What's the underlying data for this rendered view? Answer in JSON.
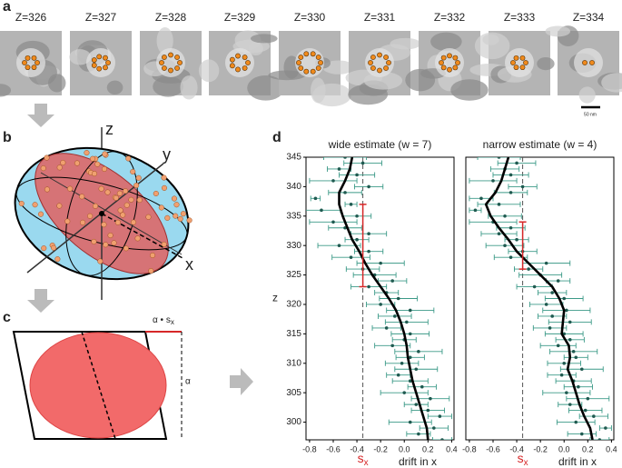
{
  "panel_labels": [
    "a",
    "b",
    "c",
    "d"
  ],
  "panel_a": {
    "slices": [
      "Z=326",
      "Z=327",
      "Z=328",
      "Z=329",
      "Z=330",
      "Z=331",
      "Z=332",
      "Z=333",
      "Z=334"
    ],
    "scale_bar": "50 nm"
  },
  "panel_b": {
    "axis_labels": [
      "z",
      "y",
      "x"
    ]
  },
  "panel_c": {
    "top_label": "α • s",
    "top_label_sub": "x",
    "side_label": "α"
  },
  "chart_data": [
    {
      "type": "scatter",
      "title": "wide estimate (w = 7)",
      "xlabel": "drift in x",
      "ylabel": "z",
      "y": [
        297,
        298,
        299,
        300,
        301,
        302,
        303,
        304,
        305,
        306,
        307,
        308,
        309,
        310,
        311,
        312,
        313,
        314,
        315,
        316,
        317,
        318,
        319,
        320,
        321,
        322,
        323,
        324,
        325,
        326,
        327,
        328,
        329,
        330,
        331,
        332,
        333,
        334,
        335,
        336,
        337,
        338,
        339,
        340,
        341,
        342,
        343,
        344,
        345
      ],
      "x": [
        0.32,
        0.12,
        0.25,
        0.05,
        0.3,
        0.2,
        0.1,
        0.22,
        0.0,
        0.15,
        0.05,
        -0.05,
        0.1,
        -0.02,
        0.05,
        0.12,
        -0.1,
        0.0,
        0.05,
        -0.15,
        0.02,
        -0.08,
        0.05,
        -0.2,
        -0.05,
        -0.15,
        -0.3,
        -0.1,
        -0.25,
        -0.35,
        -0.2,
        -0.45,
        -0.3,
        -0.55,
        -0.4,
        -0.3,
        -0.5,
        -0.6,
        -0.4,
        -0.7,
        -0.45,
        -0.75,
        -0.5,
        -0.3,
        -0.6,
        -0.4,
        -0.55,
        -0.35,
        -0.5
      ],
      "xerr": [
        0.08,
        0.1,
        0.12,
        0.18,
        0.1,
        0.14,
        0.1,
        0.16,
        0.2,
        0.12,
        0.15,
        0.1,
        0.18,
        0.14,
        0.12,
        0.2,
        0.15,
        0.1,
        0.16,
        0.12,
        0.18,
        0.14,
        0.2,
        0.12,
        0.16,
        0.1,
        0.15,
        0.12,
        0.18,
        0.14,
        0.2,
        0.16,
        0.12,
        0.18,
        0.1,
        0.15,
        0.14,
        0.2,
        0.12,
        0.16,
        0.05,
        0.04,
        0.14,
        0.12,
        0.2,
        0.15,
        0.1,
        0.16,
        0.18
      ],
      "color": "#1f5a50",
      "errcolor": "#3c9a88",
      "fit": {
        "color": "#000000",
        "y": [
          345,
          343,
          341,
          339,
          337,
          335,
          333,
          331,
          329,
          327,
          325,
          323,
          321,
          319,
          317,
          315,
          313,
          311,
          309,
          307,
          305,
          303,
          301,
          299,
          297
        ],
        "x": [
          -0.44,
          -0.46,
          -0.5,
          -0.55,
          -0.55,
          -0.52,
          -0.48,
          -0.44,
          -0.38,
          -0.33,
          -0.27,
          -0.2,
          -0.13,
          -0.07,
          -0.03,
          0.0,
          0.02,
          0.03,
          0.05,
          0.07,
          0.1,
          0.13,
          0.16,
          0.19,
          0.2
        ]
      },
      "reference": {
        "x": -0.35,
        "y": 330,
        "yerr": 7,
        "label": "s",
        "label_sub": "x",
        "color": "#d62728"
      },
      "xlim": [
        -0.83,
        0.42
      ],
      "ylim": [
        297,
        345
      ],
      "xticks": [
        -0.8,
        -0.6,
        -0.4,
        -0.2,
        {
          "value": 0,
          "label": "0.0"
        },
        0.2,
        0.4
      ],
      "yticks": [
        300,
        305,
        310,
        315,
        320,
        325,
        330,
        335,
        340,
        345
      ]
    },
    {
      "type": "scatter",
      "title": "narrow estimate (w = 4)",
      "xlabel": "drift in x",
      "y": [
        297,
        298,
        299,
        300,
        301,
        302,
        303,
        304,
        305,
        306,
        307,
        308,
        309,
        310,
        311,
        312,
        313,
        314,
        315,
        316,
        317,
        318,
        319,
        320,
        321,
        322,
        323,
        324,
        325,
        326,
        327,
        328,
        329,
        330,
        331,
        332,
        333,
        334,
        335,
        336,
        337,
        338,
        339,
        340,
        341,
        342,
        343,
        344,
        345
      ],
      "x": [
        0.3,
        0.15,
        0.35,
        0.1,
        0.25,
        0.18,
        0.05,
        0.2,
        0.02,
        0.12,
        0.08,
        -0.02,
        0.15,
        0.0,
        0.1,
        0.08,
        -0.05,
        0.05,
        0.0,
        -0.12,
        0.05,
        -0.1,
        0.02,
        -0.15,
        0.0,
        -0.1,
        -0.25,
        -0.05,
        -0.2,
        -0.3,
        -0.15,
        -0.45,
        -0.35,
        -0.5,
        -0.4,
        -0.55,
        -0.45,
        -0.6,
        -0.5,
        -0.75,
        -0.55,
        -0.7,
        -0.45,
        -0.35,
        -0.6,
        -0.45,
        -0.5,
        -0.4,
        -0.55
      ],
      "xerr": [
        0.08,
        0.12,
        0.05,
        0.16,
        0.12,
        0.14,
        0.1,
        0.18,
        0.2,
        0.12,
        0.15,
        0.12,
        0.18,
        0.14,
        0.1,
        0.2,
        0.15,
        0.12,
        0.16,
        0.14,
        0.18,
        0.12,
        0.2,
        0.14,
        0.16,
        0.12,
        0.15,
        0.1,
        0.18,
        0.12,
        0.2,
        0.14,
        0.12,
        0.16,
        0.1,
        0.15,
        0.12,
        0.2,
        0.14,
        0.05,
        0.18,
        0.1,
        0.14,
        0.12,
        0.2,
        0.15,
        0.12,
        0.16,
        0.18
      ],
      "color": "#1f5a50",
      "errcolor": "#3c9a88",
      "fit": {
        "color": "#000000",
        "y": [
          345,
          343,
          341,
          339,
          337,
          335,
          333,
          331,
          329,
          327,
          325,
          323,
          321,
          319,
          317,
          315,
          313,
          311,
          309,
          307,
          305,
          303,
          301,
          299,
          297
        ],
        "x": [
          -0.47,
          -0.5,
          -0.53,
          -0.58,
          -0.66,
          -0.62,
          -0.55,
          -0.47,
          -0.4,
          -0.3,
          -0.2,
          -0.1,
          -0.04,
          0.0,
          -0.01,
          -0.02,
          0.04,
          0.05,
          0.03,
          0.07,
          0.1,
          0.13,
          0.17,
          0.22,
          0.24
        ]
      },
      "reference": {
        "x": -0.35,
        "y": 330,
        "yerr": 4,
        "label": "s",
        "label_sub": "x",
        "color": "#d62728"
      },
      "xlim": [
        -0.83,
        0.42
      ],
      "ylim": [
        297,
        345
      ],
      "xticks": [
        -0.8,
        -0.6,
        -0.4,
        -0.2,
        {
          "value": 0,
          "label": "0.0"
        },
        0.2,
        0.4
      ]
    }
  ]
}
